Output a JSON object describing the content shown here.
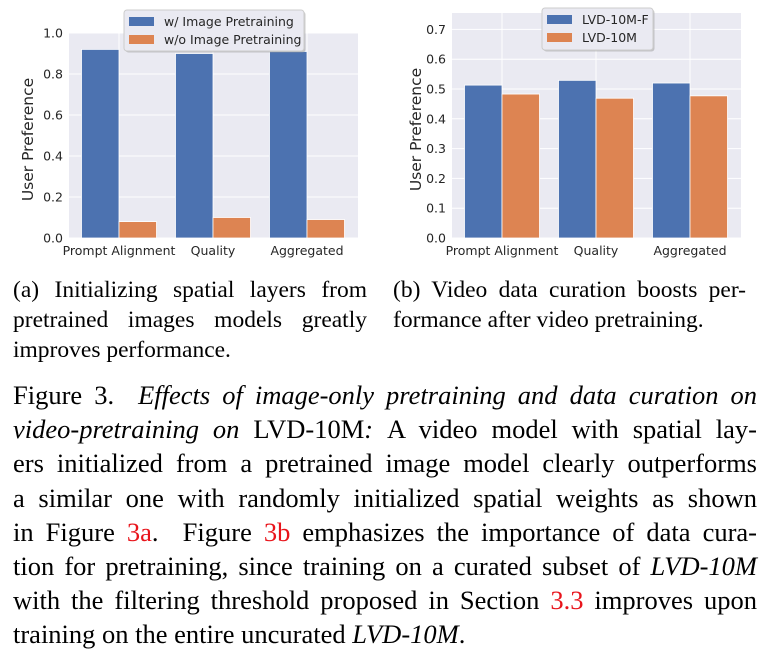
{
  "chart_data": [
    {
      "type": "bar",
      "categories": [
        "Prompt Alignment",
        "Quality",
        "Aggregated"
      ],
      "series": [
        {
          "name": "w/ Image Pretraining",
          "values": [
            0.92,
            0.9,
            0.91
          ],
          "color": "#4c72b0"
        },
        {
          "name": "w/o Image Pretraining",
          "values": [
            0.08,
            0.1,
            0.09
          ],
          "color": "#dd8452"
        }
      ],
      "ylabel": "User Preference",
      "ylim": [
        0,
        1.0
      ],
      "yticks": [
        "0.0",
        "0.2",
        "0.4",
        "0.6",
        "0.8",
        "1.0"
      ],
      "grid": true,
      "legend": "top-center",
      "background": "#eaeaf2"
    },
    {
      "type": "bar",
      "categories": [
        "Prompt Alignment",
        "Quality",
        "Aggregated"
      ],
      "series": [
        {
          "name": "LVD-10M-F",
          "values": [
            0.513,
            0.529,
            0.52
          ],
          "color": "#4c72b0"
        },
        {
          "name": "LVD-10M",
          "values": [
            0.483,
            0.469,
            0.477
          ],
          "color": "#dd8452"
        }
      ],
      "ylabel": "User Preference",
      "ylim": [
        0,
        0.755
      ],
      "yticks": [
        "0.0",
        "0.1",
        "0.2",
        "0.3",
        "0.4",
        "0.5",
        "0.6",
        "0.7"
      ],
      "grid": true,
      "legend": "top-center",
      "background": "#eaeaf2"
    }
  ],
  "subcaptions": {
    "a": [
      "(a)  Initializing spatial layers from",
      "pretrained images models greatly",
      "improves performance."
    ],
    "b": [
      "(b)  Video data curation boosts per-",
      "formance after video pretraining."
    ]
  },
  "caption": {
    "lines": [
      [
        {
          "t": "Figure 3.  ",
          "s": "n"
        },
        {
          "t": "Effects of image-only pretraining and data curation on",
          "s": "i"
        }
      ],
      [
        {
          "t": "video-pretraining on ",
          "s": "i"
        },
        {
          "t": "LVD-10M",
          "s": "n"
        },
        {
          "t": ": ",
          "s": "i"
        },
        {
          "t": "A video model with spatial lay-",
          "s": "n"
        }
      ],
      [
        {
          "t": "ers initialized from a pretrained image model clearly outperforms",
          "s": "n"
        }
      ],
      [
        {
          "t": "a similar one with randomly initialized spatial weights as shown",
          "s": "n"
        }
      ],
      [
        {
          "t": "in Figure ",
          "s": "n"
        },
        {
          "t": "3a",
          "s": "l"
        },
        {
          "t": ".  Figure ",
          "s": "n"
        },
        {
          "t": "3b",
          "s": "l"
        },
        {
          "t": " emphasizes the importance of data cura-",
          "s": "n"
        }
      ],
      [
        {
          "t": "tion for pretraining, since training on a curated subset of ",
          "s": "n"
        },
        {
          "t": "LVD-10M",
          "s": "i"
        }
      ],
      [
        {
          "t": "with the filtering threshold proposed in Section ",
          "s": "n"
        },
        {
          "t": "3.3",
          "s": "l"
        },
        {
          "t": " improves upon",
          "s": "n"
        }
      ],
      [
        {
          "t": "training on the entire uncurated ",
          "s": "n"
        },
        {
          "t": "LVD-10M",
          "s": "i"
        },
        {
          "t": ".",
          "s": "n"
        }
      ]
    ],
    "link_color": "#e8141b"
  }
}
